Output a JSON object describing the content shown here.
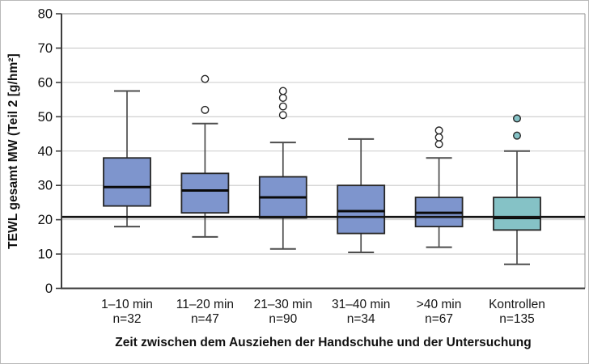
{
  "chart_data": {
    "type": "boxplot",
    "title": "",
    "ylabel": "TEWL gesamt MW (Teil 2 [g/hm²]",
    "xlabel": "Zeit zwischen dem Ausziehen der Handschuhe und der Untersuchung",
    "ylim": [
      0,
      80
    ],
    "yticks": [
      0,
      10,
      20,
      30,
      40,
      50,
      60,
      70,
      80
    ],
    "grid": true,
    "legend": "none",
    "reference_line": 20.8,
    "colors": {
      "grid": "#cbcbcb",
      "frame": "#a3a3a3",
      "axis": "#3d3d3d",
      "whisker": "#4d4d4d",
      "box_stroke": "#262626",
      "median": "#0a0a0a",
      "reference": "#141414",
      "blue_fill": "#7e95cd",
      "teal_fill": "#85c2c6"
    },
    "groups": [
      {
        "label": "1–10 min",
        "sublabel": "n=32",
        "whisker_low": 18,
        "q1": 24,
        "median": 29.5,
        "q3": 38,
        "whisker_high": 57.5,
        "outliers": [],
        "fill": "#7e95cd",
        "outlier_fill": "#ffffff"
      },
      {
        "label": "11–20 min",
        "sublabel": "n=47",
        "whisker_low": 15,
        "q1": 22,
        "median": 28.5,
        "q3": 33.5,
        "whisker_high": 48,
        "outliers": [
          52,
          61
        ],
        "fill": "#7e95cd",
        "outlier_fill": "#ffffff"
      },
      {
        "label": "21–30 min",
        "sublabel": "n=90",
        "whisker_low": 11.5,
        "q1": 20.5,
        "median": 26.5,
        "q3": 32.5,
        "whisker_high": 42.5,
        "outliers": [
          50.5,
          53,
          55.5,
          57.5
        ],
        "fill": "#7e95cd",
        "outlier_fill": "#ffffff"
      },
      {
        "label": "31–40 min",
        "sublabel": "n=34",
        "whisker_low": 10.5,
        "q1": 16,
        "median": 22.5,
        "q3": 30,
        "whisker_high": 43.5,
        "outliers": [],
        "fill": "#7e95cd",
        "outlier_fill": "#ffffff"
      },
      {
        "label": ">40 min",
        "sublabel": "n=67",
        "whisker_low": 12,
        "q1": 18,
        "median": 22,
        "q3": 26.5,
        "whisker_high": 38,
        "outliers": [
          42,
          44,
          46
        ],
        "fill": "#7e95cd",
        "outlier_fill": "#ffffff"
      },
      {
        "label": "Kontrollen",
        "sublabel": "n=135",
        "whisker_low": 7,
        "q1": 17,
        "median": 20.5,
        "q3": 26.5,
        "whisker_high": 40,
        "outliers": [
          44.5,
          49.5
        ],
        "fill": "#85c2c6",
        "outlier_fill": "#85c2c6"
      }
    ]
  }
}
